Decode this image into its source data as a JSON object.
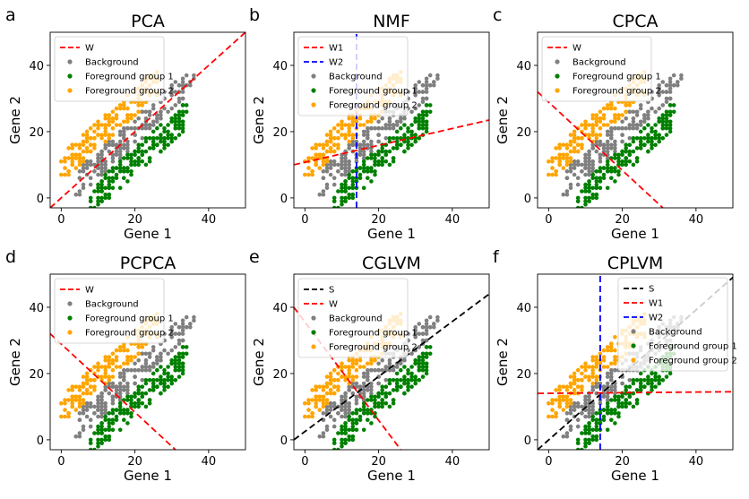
{
  "figure": {
    "colors": {
      "background": "#808080",
      "fg1": "#008000",
      "fg2": "#FFA500",
      "red": "#FF0000",
      "blue": "#0000FF",
      "black": "#000000"
    }
  },
  "chart_data": [
    {
      "type": "scatter",
      "panel_letter": "a",
      "title": "PCA",
      "xlabel": "Gene 1",
      "ylabel": "Gene 2",
      "xlim": [
        -3,
        50
      ],
      "ylim": [
        -3,
        50
      ],
      "xticks": [
        0,
        20,
        40
      ],
      "yticks": [
        0,
        20,
        40
      ],
      "legend_position": "top-left",
      "legend": [
        {
          "label": "W",
          "kind": "line",
          "color": "#FF0000"
        },
        {
          "label": "Background",
          "kind": "point",
          "color": "#808080"
        },
        {
          "label": "Foreground group 1",
          "kind": "point",
          "color": "#008000"
        },
        {
          "label": "Foreground group 2",
          "kind": "point",
          "color": "#FFA500"
        }
      ],
      "lines": [
        {
          "name": "W",
          "color": "#FF0000",
          "x": [
            -3,
            50
          ],
          "y": [
            -3,
            50
          ]
        }
      ]
    },
    {
      "type": "scatter",
      "panel_letter": "b",
      "title": "NMF",
      "xlabel": "Gene 1",
      "ylabel": "Gene 2",
      "xlim": [
        -3,
        50
      ],
      "ylim": [
        -3,
        50
      ],
      "xticks": [
        0,
        20,
        40
      ],
      "yticks": [
        0,
        20,
        40
      ],
      "legend_position": "top-left",
      "legend": [
        {
          "label": "W1",
          "kind": "line",
          "color": "#FF0000"
        },
        {
          "label": "W2",
          "kind": "line",
          "color": "#0000FF"
        },
        {
          "label": "Background",
          "kind": "point",
          "color": "#808080"
        },
        {
          "label": "Foreground group 1",
          "kind": "point",
          "color": "#008000"
        },
        {
          "label": "Foreground group 2",
          "kind": "point",
          "color": "#FFA500"
        }
      ],
      "lines": [
        {
          "name": "W1",
          "color": "#FF0000",
          "x": [
            -3,
            50
          ],
          "y": [
            10,
            23.5
          ]
        },
        {
          "name": "W2",
          "color": "#0000FF",
          "x": [
            14,
            14
          ],
          "y": [
            -3,
            50
          ]
        }
      ]
    },
    {
      "type": "scatter",
      "panel_letter": "c",
      "title": "CPCA",
      "xlabel": "Gene 1",
      "ylabel": "Gene 2",
      "xlim": [
        -3,
        50
      ],
      "ylim": [
        -3,
        50
      ],
      "xticks": [
        0,
        20,
        40
      ],
      "yticks": [
        0,
        20,
        40
      ],
      "legend_position": "top-left",
      "legend": [
        {
          "label": "W",
          "kind": "line",
          "color": "#FF0000"
        },
        {
          "label": "Background",
          "kind": "point",
          "color": "#808080"
        },
        {
          "label": "Foreground group 1",
          "kind": "point",
          "color": "#008000"
        },
        {
          "label": "Foreground group 2",
          "kind": "point",
          "color": "#FFA500"
        }
      ],
      "lines": [
        {
          "name": "W",
          "color": "#FF0000",
          "x": [
            -3,
            31
          ],
          "y": [
            32,
            -3
          ]
        }
      ]
    },
    {
      "type": "scatter",
      "panel_letter": "d",
      "title": "PCPCA",
      "xlabel": "Gene 1",
      "ylabel": "Gene 2",
      "xlim": [
        -3,
        50
      ],
      "ylim": [
        -3,
        50
      ],
      "xticks": [
        0,
        20,
        40
      ],
      "yticks": [
        0,
        20,
        40
      ],
      "legend_position": "top-left",
      "legend": [
        {
          "label": "W",
          "kind": "line",
          "color": "#FF0000"
        },
        {
          "label": "Background",
          "kind": "point",
          "color": "#808080"
        },
        {
          "label": "Foreground group 1",
          "kind": "point",
          "color": "#008000"
        },
        {
          "label": "Foreground group 2",
          "kind": "point",
          "color": "#FFA500"
        }
      ],
      "lines": [
        {
          "name": "W",
          "color": "#FF0000",
          "x": [
            -3,
            31
          ],
          "y": [
            32,
            -3
          ]
        }
      ]
    },
    {
      "type": "scatter",
      "panel_letter": "e",
      "title": "CGLVM",
      "xlabel": "Gene 1",
      "ylabel": "Gene 2",
      "xlim": [
        -3,
        50
      ],
      "ylim": [
        -3,
        50
      ],
      "xticks": [
        0,
        20,
        40
      ],
      "yticks": [
        0,
        20,
        40
      ],
      "legend_position": "top-left",
      "legend": [
        {
          "label": "S",
          "kind": "line",
          "color": "#000000"
        },
        {
          "label": "W",
          "kind": "line",
          "color": "#FF0000"
        },
        {
          "label": "Background",
          "kind": "point",
          "color": "#808080"
        },
        {
          "label": "Foreground group 1",
          "kind": "point",
          "color": "#008000"
        },
        {
          "label": "Foreground group 2",
          "kind": "point",
          "color": "#FFA500"
        }
      ],
      "lines": [
        {
          "name": "S",
          "color": "#000000",
          "x": [
            -3,
            50
          ],
          "y": [
            0,
            44
          ]
        },
        {
          "name": "W",
          "color": "#FF0000",
          "x": [
            -3,
            26
          ],
          "y": [
            40,
            -3
          ]
        }
      ]
    },
    {
      "type": "scatter",
      "panel_letter": "f",
      "title": "CPLVM",
      "xlabel": "Gene 1",
      "ylabel": "Gene 2",
      "xlim": [
        -3,
        50
      ],
      "ylim": [
        -3,
        50
      ],
      "xticks": [
        0,
        20,
        40
      ],
      "yticks": [
        0,
        20,
        40
      ],
      "legend_position": "top-right",
      "legend": [
        {
          "label": "S",
          "kind": "line",
          "color": "#000000"
        },
        {
          "label": "W1",
          "kind": "line",
          "color": "#FF0000"
        },
        {
          "label": "W2",
          "kind": "line",
          "color": "#0000FF"
        },
        {
          "label": "Background",
          "kind": "point",
          "color": "#808080"
        },
        {
          "label": "Foreground group 1",
          "kind": "point",
          "color": "#008000"
        },
        {
          "label": "Foreground group 2",
          "kind": "point",
          "color": "#FFA500"
        }
      ],
      "lines": [
        {
          "name": "S",
          "color": "#000000",
          "x": [
            -3,
            50
          ],
          "y": [
            -3,
            49
          ]
        },
        {
          "name": "W1",
          "color": "#FF0000",
          "x": [
            -3,
            50
          ],
          "y": [
            14,
            14.5
          ]
        },
        {
          "name": "W2",
          "color": "#0000FF",
          "x": [
            14,
            14
          ],
          "y": [
            -3,
            50
          ]
        }
      ]
    }
  ],
  "point_clouds": [
    {
      "group": "Background",
      "color": "#808080",
      "x_min": 4,
      "x_max": 36,
      "y_offset_center": 0,
      "y_offset_spread": 8,
      "count": 180
    },
    {
      "group": "Foreground group 1",
      "color": "#008000",
      "x_min": 8,
      "x_max": 34,
      "y_offset_center": -9,
      "y_offset_spread": 8,
      "count": 170
    },
    {
      "group": "Foreground group 2",
      "color": "#FFA500",
      "x_min": 0,
      "x_max": 26,
      "y_offset_center": 9,
      "y_offset_spread": 8,
      "count": 170
    }
  ]
}
